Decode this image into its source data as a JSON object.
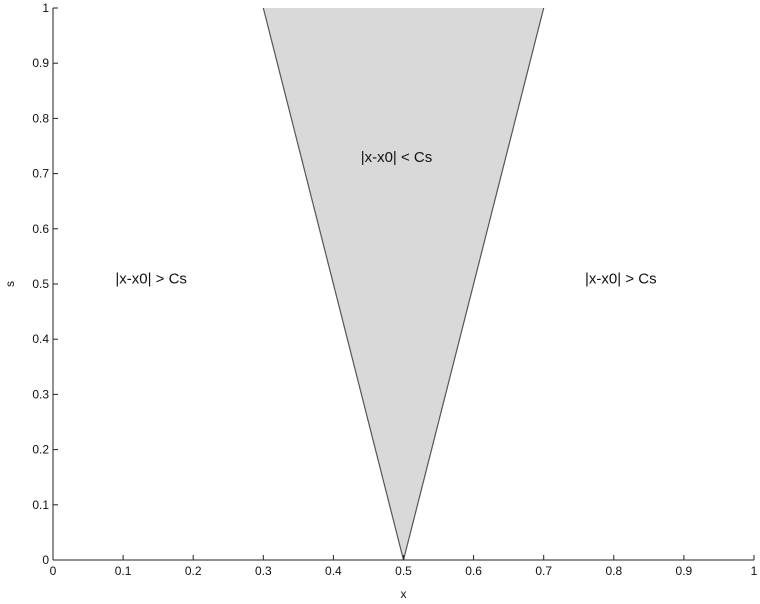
{
  "chart_data": {
    "type": "area",
    "title": "",
    "xlabel": "x",
    "ylabel": "s",
    "xlim": [
      0,
      1
    ],
    "ylim": [
      0,
      1
    ],
    "x_ticks": [
      "0",
      "0.1",
      "0.2",
      "0.3",
      "0.4",
      "0.5",
      "0.6",
      "0.7",
      "0.8",
      "0.9",
      "1"
    ],
    "y_ticks": [
      "0",
      "0.1",
      "0.2",
      "0.3",
      "0.4",
      "0.5",
      "0.6",
      "0.7",
      "0.8",
      "0.9",
      "1"
    ],
    "grid": false,
    "series": [
      {
        "points": [
          [
            0.3,
            1.0
          ],
          [
            0.5,
            0.0
          ],
          [
            0.7,
            1.0
          ]
        ],
        "fill": "#d9d9d9",
        "edge": "#555555"
      }
    ],
    "annotations": [
      {
        "text": "|x-x0| > Cs",
        "x": 0.14,
        "y": 0.51
      },
      {
        "text": "|x-x0| < Cs",
        "x": 0.49,
        "y": 0.73
      },
      {
        "text": "|x-x0| > Cs",
        "x": 0.81,
        "y": 0.51
      }
    ]
  }
}
